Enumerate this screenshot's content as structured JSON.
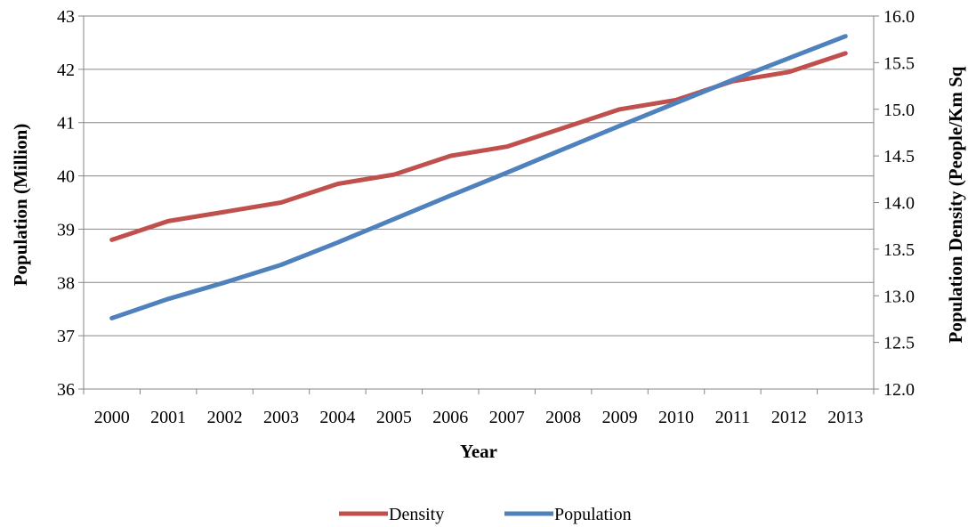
{
  "chart_data": {
    "type": "line",
    "xlabel": "Year",
    "ylabel_left": "Population (Million)",
    "ylabel_right": "Population Density (People/Km Sq",
    "categories": [
      "2000",
      "2001",
      "2002",
      "2003",
      "2004",
      "2005",
      "2006",
      "2007",
      "2008",
      "2009",
      "2010",
      "2011",
      "2012",
      "2013"
    ],
    "y_left": {
      "min": 36,
      "max": 43,
      "ticks": [
        "36",
        "37",
        "38",
        "39",
        "40",
        "41",
        "42",
        "43"
      ]
    },
    "y_right": {
      "min": 12.0,
      "max": 16.0,
      "ticks": [
        "12.0",
        "12.5",
        "13.0",
        "13.5",
        "14.0",
        "14.5",
        "15.0",
        "15.5",
        "16.0"
      ]
    },
    "grid": true,
    "legend_position": "bottom",
    "series": [
      {
        "name": "Density",
        "axis": "right",
        "color": "#C0504D",
        "values": [
          13.6,
          13.8,
          13.9,
          14.0,
          14.2,
          14.3,
          14.5,
          14.6,
          14.8,
          15.0,
          15.1,
          15.3,
          15.4,
          15.6
        ]
      },
      {
        "name": "Population",
        "axis": "left",
        "color": "#4F81BD",
        "values": [
          37.33,
          37.69,
          38.0,
          38.33,
          38.75,
          39.19,
          39.63,
          40.06,
          40.5,
          40.94,
          41.37,
          41.8,
          42.21,
          42.62
        ]
      }
    ]
  }
}
